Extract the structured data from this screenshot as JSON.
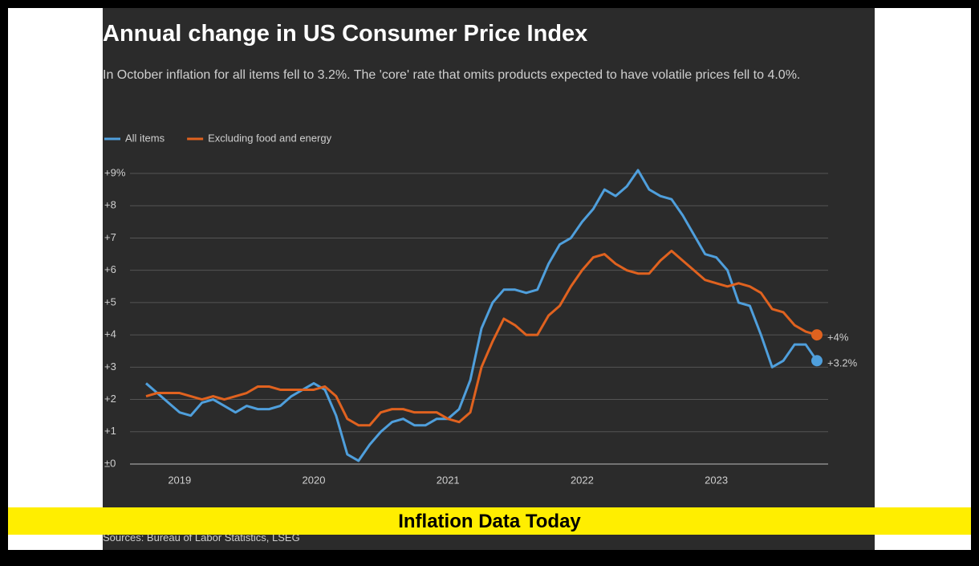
{
  "chart_data": {
    "type": "line",
    "title": "Annual change in US Consumer Price Index",
    "subtitle": "In October inflation for all items fell to 3.2%. The 'core' rate that omits products expected to have volatile prices fell to 4.0%.",
    "categories": [
      null,
      null,
      null,
      "2019",
      null,
      null,
      null,
      null,
      null,
      null,
      null,
      null,
      null,
      null,
      null,
      "2020",
      null,
      null,
      null,
      null,
      null,
      null,
      null,
      null,
      null,
      null,
      null,
      "2021",
      null,
      null,
      null,
      null,
      null,
      null,
      null,
      null,
      null,
      null,
      null,
      "2022",
      null,
      null,
      null,
      null,
      null,
      null,
      null,
      null,
      null,
      null,
      null,
      "2023",
      null,
      null,
      null,
      null,
      null,
      null,
      null,
      null,
      null
    ],
    "series": [
      {
        "name": "All items",
        "color": "#4f9fdc",
        "values": [
          2.5,
          2.2,
          1.9,
          1.6,
          1.5,
          1.9,
          2.0,
          1.8,
          1.6,
          1.8,
          1.7,
          1.7,
          1.8,
          2.1,
          2.3,
          2.5,
          2.3,
          1.5,
          0.3,
          0.1,
          0.6,
          1.0,
          1.3,
          1.4,
          1.2,
          1.2,
          1.4,
          1.4,
          1.7,
          2.6,
          4.2,
          5.0,
          5.4,
          5.4,
          5.3,
          5.4,
          6.2,
          6.8,
          7.0,
          7.5,
          7.9,
          8.5,
          8.3,
          8.6,
          9.1,
          8.5,
          8.3,
          8.2,
          7.7,
          7.1,
          6.5,
          6.4,
          6.0,
          5.0,
          4.9,
          4.0,
          3.0,
          3.2,
          3.7,
          3.7,
          3.2
        ],
        "value_labels": [
          null,
          null,
          null,
          null,
          null,
          null,
          null,
          null,
          null,
          null,
          null,
          null,
          null,
          null,
          null,
          null,
          null,
          null,
          null,
          null,
          null,
          null,
          null,
          null,
          null,
          null,
          null,
          null,
          null,
          null,
          null,
          null,
          null,
          null,
          null,
          null,
          null,
          null,
          null,
          null,
          null,
          null,
          null,
          null,
          null,
          null,
          null,
          null,
          null,
          null,
          null,
          null,
          null,
          null,
          null,
          null,
          null,
          null,
          null,
          null,
          "+3.2%"
        ]
      },
      {
        "name": "Excluding food and energy",
        "color": "#e0621f",
        "values": [
          2.1,
          2.2,
          2.2,
          2.2,
          2.1,
          2.0,
          2.1,
          2.0,
          2.1,
          2.2,
          2.4,
          2.4,
          2.3,
          2.3,
          2.3,
          2.3,
          2.4,
          2.1,
          1.4,
          1.2,
          1.2,
          1.6,
          1.7,
          1.7,
          1.6,
          1.6,
          1.6,
          1.4,
          1.3,
          1.6,
          3.0,
          3.8,
          4.5,
          4.3,
          4.0,
          4.0,
          4.6,
          4.9,
          5.5,
          6.0,
          6.4,
          6.5,
          6.2,
          6.0,
          5.9,
          5.9,
          6.3,
          6.6,
          6.3,
          6.0,
          5.7,
          5.6,
          5.5,
          5.6,
          5.5,
          5.3,
          4.8,
          4.7,
          4.3,
          4.1,
          4.0
        ],
        "value_labels": [
          null,
          null,
          null,
          null,
          null,
          null,
          null,
          null,
          null,
          null,
          null,
          null,
          null,
          null,
          null,
          null,
          null,
          null,
          null,
          null,
          null,
          null,
          null,
          null,
          null,
          null,
          null,
          null,
          null,
          null,
          null,
          null,
          null,
          null,
          null,
          null,
          null,
          null,
          null,
          null,
          null,
          null,
          null,
          null,
          null,
          null,
          null,
          null,
          null,
          null,
          null,
          null,
          null,
          null,
          null,
          null,
          null,
          null,
          null,
          null,
          "+4%"
        ]
      }
    ],
    "ylim": [
      0,
      9
    ],
    "yticks": [
      {
        "value": 0,
        "label": "±0"
      },
      {
        "value": 1,
        "label": "+1"
      },
      {
        "value": 2,
        "label": "+2"
      },
      {
        "value": 3,
        "label": "+3"
      },
      {
        "value": 4,
        "label": "+4"
      },
      {
        "value": 5,
        "label": "+5"
      },
      {
        "value": 6,
        "label": "+6"
      },
      {
        "value": 7,
        "label": "+7"
      },
      {
        "value": 8,
        "label": "+8"
      },
      {
        "value": 9,
        "label": "+9%"
      }
    ],
    "grid": true,
    "source": "Sources: Bureau of Labor Statistics, LSEG"
  },
  "banner": "Inflation Data Today"
}
